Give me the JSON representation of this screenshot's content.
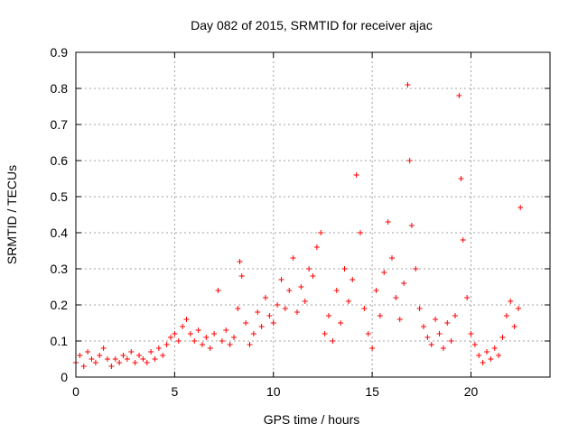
{
  "chart_data": {
    "type": "scatter",
    "title": "Day 082 of 2015, SRMTID for receiver ajac",
    "xlabel": "GPS time / hours",
    "ylabel": "SRMTID / TECUs",
    "xlim": [
      0,
      24
    ],
    "ylim": [
      0,
      0.9
    ],
    "x_ticks": [
      0,
      5,
      10,
      15,
      20
    ],
    "x_tick_labels": [
      "0",
      "5",
      "10",
      "15",
      "20"
    ],
    "y_ticks": [
      0,
      0.1,
      0.2,
      0.3,
      0.4,
      0.5,
      0.6,
      0.7,
      0.8,
      0.9
    ],
    "y_tick_labels": [
      "0",
      "0.1",
      "0.2",
      "0.3",
      "0.4",
      "0.5",
      "0.6",
      "0.7",
      "0.8",
      "0.9"
    ],
    "grid": true,
    "marker": "+",
    "marker_color": "#ff0000",
    "series": [
      {
        "name": "SRMTID",
        "points": [
          [
            0.0,
            0.04
          ],
          [
            0.2,
            0.06
          ],
          [
            0.4,
            0.03
          ],
          [
            0.6,
            0.07
          ],
          [
            0.8,
            0.05
          ],
          [
            1.0,
            0.04
          ],
          [
            1.2,
            0.06
          ],
          [
            1.4,
            0.08
          ],
          [
            1.6,
            0.05
          ],
          [
            1.8,
            0.03
          ],
          [
            2.0,
            0.05
          ],
          [
            2.2,
            0.04
          ],
          [
            2.4,
            0.06
          ],
          [
            2.6,
            0.05
          ],
          [
            2.8,
            0.07
          ],
          [
            3.0,
            0.04
          ],
          [
            3.2,
            0.06
          ],
          [
            3.4,
            0.05
          ],
          [
            3.6,
            0.04
          ],
          [
            3.8,
            0.07
          ],
          [
            4.0,
            0.05
          ],
          [
            4.2,
            0.08
          ],
          [
            4.4,
            0.06
          ],
          [
            4.6,
            0.09
          ],
          [
            4.8,
            0.11
          ],
          [
            5.0,
            0.12
          ],
          [
            5.2,
            0.1
          ],
          [
            5.4,
            0.14
          ],
          [
            5.6,
            0.16
          ],
          [
            5.8,
            0.12
          ],
          [
            6.0,
            0.1
          ],
          [
            6.2,
            0.13
          ],
          [
            6.4,
            0.09
          ],
          [
            6.6,
            0.11
          ],
          [
            6.8,
            0.08
          ],
          [
            7.0,
            0.12
          ],
          [
            7.2,
            0.24
          ],
          [
            7.4,
            0.1
          ],
          [
            7.6,
            0.13
          ],
          [
            7.8,
            0.09
          ],
          [
            8.0,
            0.11
          ],
          [
            8.2,
            0.19
          ],
          [
            8.3,
            0.32
          ],
          [
            8.4,
            0.28
          ],
          [
            8.6,
            0.15
          ],
          [
            8.8,
            0.09
          ],
          [
            9.0,
            0.12
          ],
          [
            9.2,
            0.18
          ],
          [
            9.4,
            0.14
          ],
          [
            9.6,
            0.22
          ],
          [
            9.8,
            0.17
          ],
          [
            10.0,
            0.15
          ],
          [
            10.2,
            0.2
          ],
          [
            10.4,
            0.27
          ],
          [
            10.6,
            0.19
          ],
          [
            10.8,
            0.24
          ],
          [
            11.0,
            0.33
          ],
          [
            11.2,
            0.18
          ],
          [
            11.4,
            0.25
          ],
          [
            11.6,
            0.21
          ],
          [
            11.8,
            0.3
          ],
          [
            12.0,
            0.28
          ],
          [
            12.2,
            0.36
          ],
          [
            12.4,
            0.4
          ],
          [
            12.6,
            0.12
          ],
          [
            12.8,
            0.17
          ],
          [
            13.0,
            0.1
          ],
          [
            13.2,
            0.24
          ],
          [
            13.4,
            0.15
          ],
          [
            13.6,
            0.3
          ],
          [
            13.8,
            0.21
          ],
          [
            14.0,
            0.27
          ],
          [
            14.2,
            0.56
          ],
          [
            14.4,
            0.4
          ],
          [
            14.6,
            0.19
          ],
          [
            14.8,
            0.12
          ],
          [
            15.0,
            0.08
          ],
          [
            15.2,
            0.24
          ],
          [
            15.4,
            0.17
          ],
          [
            15.6,
            0.29
          ],
          [
            15.8,
            0.43
          ],
          [
            16.0,
            0.33
          ],
          [
            16.2,
            0.22
          ],
          [
            16.4,
            0.16
          ],
          [
            16.6,
            0.26
          ],
          [
            16.8,
            0.81
          ],
          [
            16.9,
            0.6
          ],
          [
            17.0,
            0.42
          ],
          [
            17.2,
            0.3
          ],
          [
            17.4,
            0.19
          ],
          [
            17.6,
            0.14
          ],
          [
            17.8,
            0.11
          ],
          [
            18.0,
            0.09
          ],
          [
            18.2,
            0.16
          ],
          [
            18.4,
            0.12
          ],
          [
            18.6,
            0.08
          ],
          [
            18.8,
            0.15
          ],
          [
            19.0,
            0.1
          ],
          [
            19.2,
            0.17
          ],
          [
            19.4,
            0.78
          ],
          [
            19.5,
            0.55
          ],
          [
            19.6,
            0.38
          ],
          [
            19.8,
            0.22
          ],
          [
            20.0,
            0.12
          ],
          [
            20.2,
            0.09
          ],
          [
            20.4,
            0.06
          ],
          [
            20.6,
            0.04
          ],
          [
            20.8,
            0.07
          ],
          [
            21.0,
            0.05
          ],
          [
            21.2,
            0.08
          ],
          [
            21.4,
            0.06
          ],
          [
            21.6,
            0.11
          ],
          [
            21.8,
            0.17
          ],
          [
            22.0,
            0.21
          ],
          [
            22.2,
            0.14
          ],
          [
            22.4,
            0.19
          ],
          [
            22.5,
            0.47
          ]
        ]
      }
    ]
  }
}
